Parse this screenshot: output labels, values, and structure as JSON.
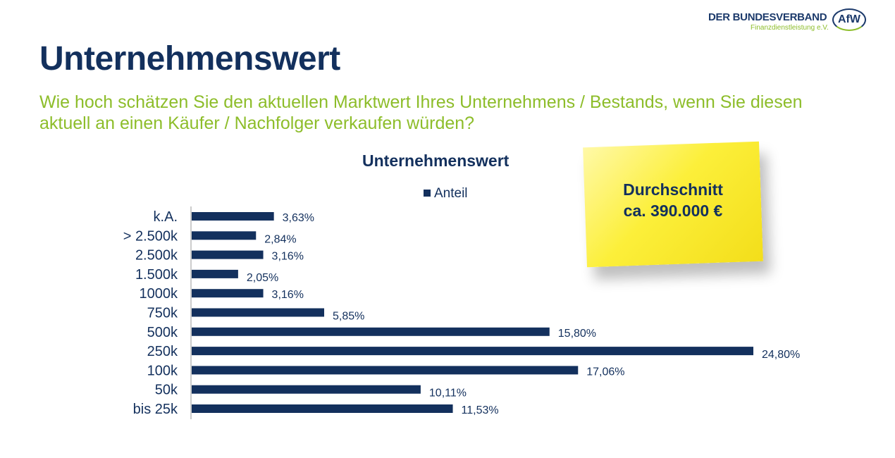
{
  "header": {
    "title": "Unternehmenswert",
    "subtitle": "Wie hoch schätzen Sie den aktuellen Marktwert Ihres Unternehmens / Bestands, wenn Sie diesen aktuell an einen Käufer / Nachfolger verkaufen würden?"
  },
  "logo": {
    "line1": "DER BUNDESVERBAND",
    "line2": "Finanzdienstleistung e.V.",
    "mark": "AfW"
  },
  "note": {
    "line1": "Durchschnitt",
    "line2": "ca. 390.000 €"
  },
  "colors": {
    "bar": "#13305d",
    "accent": "#8dbd2a",
    "note": "#fcef3a"
  },
  "chart_data": {
    "type": "bar",
    "orientation": "horizontal",
    "title": "Unternehmenswert",
    "categories": [
      "k.A.",
      "> 2.500k",
      "2.500k",
      "1.500k",
      "1000k",
      "750k",
      "500k",
      "250k",
      "100k",
      "50k",
      "bis 25k"
    ],
    "series": [
      {
        "name": "Anteil",
        "values": [
          3.63,
          2.84,
          3.16,
          2.05,
          3.16,
          5.85,
          15.8,
          24.8,
          17.06,
          10.11,
          11.53
        ]
      }
    ],
    "labels": [
      "3,63%",
      "2,84%",
      "3,16%",
      "2,05%",
      "3,16%",
      "5,85%",
      "15,80%",
      "24,80%",
      "17,06%",
      "10,11%",
      "11,53%"
    ],
    "xlim": [
      0,
      24.8
    ],
    "grid": false,
    "legend": "top"
  }
}
